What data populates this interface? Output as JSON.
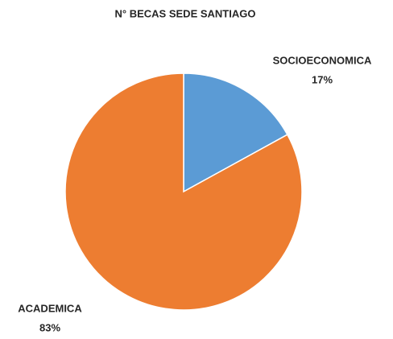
{
  "chart_data": {
    "type": "pie",
    "title": "N° BECAS SEDE SANTIAGO",
    "categories": [
      "SOCIOECONOMICA",
      "ACADEMICA"
    ],
    "values": [
      17,
      83
    ],
    "value_labels": [
      "17%",
      "83%"
    ],
    "colors": [
      "#5b9bd5",
      "#ed7d31"
    ]
  }
}
